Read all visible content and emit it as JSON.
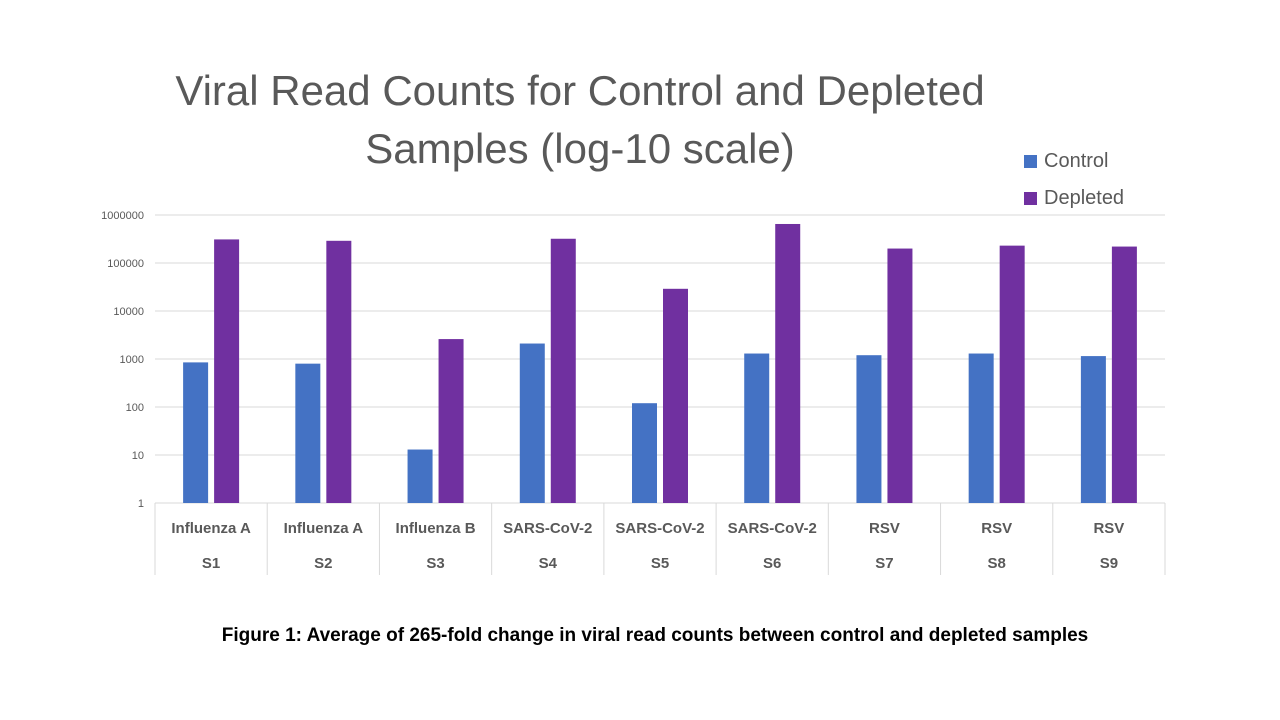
{
  "colors": {
    "control": "#4472C4",
    "depleted": "#7030A0",
    "grid": "#D9D9D9",
    "text": "#595959"
  },
  "chart_data": {
    "type": "bar",
    "title": "Viral Read Counts for Control and Depleted Samples (log-10 scale)",
    "y_scale": "log10",
    "ylim": [
      1,
      1000000
    ],
    "yticks": [
      "1",
      "10",
      "100",
      "1000",
      "10000",
      "100000",
      "1000000"
    ],
    "grid": true,
    "legend_position": "top-right",
    "categories": [
      {
        "virus": "Influenza A",
        "sample": "S1"
      },
      {
        "virus": "Influenza A",
        "sample": "S2"
      },
      {
        "virus": "Influenza B",
        "sample": "S3"
      },
      {
        "virus": "SARS-CoV-2",
        "sample": "S4"
      },
      {
        "virus": "SARS-CoV-2",
        "sample": "S5"
      },
      {
        "virus": "SARS-CoV-2",
        "sample": "S6"
      },
      {
        "virus": "RSV",
        "sample": "S7"
      },
      {
        "virus": "RSV",
        "sample": "S8"
      },
      {
        "virus": "RSV",
        "sample": "S9"
      }
    ],
    "series": [
      {
        "name": "Control",
        "color": "#4472C4",
        "values": [
          850,
          800,
          13,
          2100,
          120,
          1300,
          1200,
          1300,
          1150
        ]
      },
      {
        "name": "Depleted",
        "color": "#7030A0",
        "values": [
          310000,
          290000,
          2600,
          320000,
          29000,
          650000,
          200000,
          230000,
          220000
        ]
      }
    ]
  },
  "caption": "Figure 1: Average of 265-fold change in viral read counts between control and depleted samples"
}
